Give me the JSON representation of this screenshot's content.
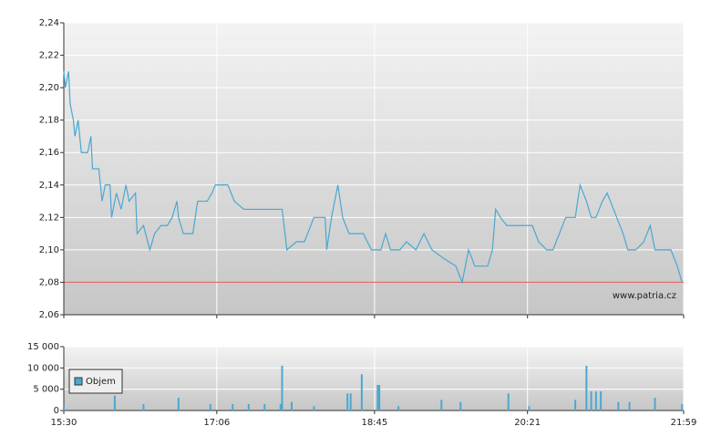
{
  "chart_data": [
    {
      "type": "line",
      "xlim": [
        "15:30",
        "21:59"
      ],
      "xticks": [
        "15:30",
        "17:06",
        "18:45",
        "20:21",
        "21:59"
      ],
      "ylim": [
        2.06,
        2.24
      ],
      "yticks": [
        {
          "value": 2.06,
          "label": "2,06"
        },
        {
          "value": 2.08,
          "label": "2,08"
        },
        {
          "value": 2.1,
          "label": "2,10"
        },
        {
          "value": 2.12,
          "label": "2,12"
        },
        {
          "value": 2.14,
          "label": "2,14"
        },
        {
          "value": 2.16,
          "label": "2,16"
        },
        {
          "value": 2.18,
          "label": "2,18"
        },
        {
          "value": 2.2,
          "label": "2,20"
        },
        {
          "value": 2.22,
          "label": "2,22"
        },
        {
          "value": 2.24,
          "label": "2,24"
        }
      ],
      "grid": true,
      "reference_line": {
        "value": 2.08,
        "color": "#e06a6a"
      },
      "source": "www.patria.cz",
      "series": [
        {
          "color": "#4aa8d0",
          "x": [
            "15:30",
            "15:31",
            "15:33",
            "15:34",
            "15:36",
            "15:37",
            "15:39",
            "15:41",
            "15:45",
            "15:47",
            "15:48",
            "15:52",
            "15:54",
            "15:56",
            "15:59",
            "16:00",
            "16:03",
            "16:06",
            "16:09",
            "16:11",
            "16:15",
            "16:16",
            "16:20",
            "16:24",
            "16:27",
            "16:31",
            "16:35",
            "16:38",
            "16:41",
            "16:42",
            "16:45",
            "16:51",
            "16:54",
            "17:00",
            "17:03",
            "17:05",
            "17:13",
            "17:17",
            "17:23",
            "17:47",
            "17:50",
            "17:56",
            "18:01",
            "18:07",
            "18:14",
            "18:15",
            "18:18",
            "18:22",
            "18:25",
            "18:29",
            "18:38",
            "18:43",
            "18:49",
            "18:52",
            "18:55",
            "19:01",
            "19:05",
            "19:11",
            "19:16",
            "19:21",
            "19:28",
            "19:36",
            "19:40",
            "19:44",
            "19:48",
            "19:56",
            "19:59",
            "20:01",
            "20:04",
            "20:08",
            "20:24",
            "20:28",
            "20:33",
            "20:37",
            "20:41",
            "20:45",
            "20:51",
            "20:54",
            "20:58",
            "21:01",
            "21:04",
            "21:08",
            "21:11",
            "21:15",
            "21:21",
            "21:24",
            "21:29",
            "21:34",
            "21:38",
            "21:41",
            "21:51",
            "21:53",
            "21:55",
            "21:58"
          ],
          "values": [
            2.21,
            2.2,
            2.21,
            2.19,
            2.18,
            2.17,
            2.18,
            2.16,
            2.16,
            2.17,
            2.15,
            2.15,
            2.13,
            2.14,
            2.14,
            2.12,
            2.135,
            2.125,
            2.14,
            2.13,
            2.135,
            2.11,
            2.115,
            2.1,
            2.11,
            2.115,
            2.115,
            2.12,
            2.13,
            2.12,
            2.11,
            2.11,
            2.13,
            2.13,
            2.135,
            2.14,
            2.14,
            2.13,
            2.125,
            2.125,
            2.1,
            2.105,
            2.105,
            2.12,
            2.12,
            2.1,
            2.12,
            2.14,
            2.12,
            2.11,
            2.11,
            2.1,
            2.1,
            2.11,
            2.1,
            2.1,
            2.105,
            2.1,
            2.11,
            2.1,
            2.095,
            2.09,
            2.08,
            2.1,
            2.09,
            2.09,
            2.1,
            2.125,
            2.12,
            2.115,
            2.115,
            2.105,
            2.1,
            2.1,
            2.11,
            2.12,
            2.12,
            2.14,
            2.13,
            2.12,
            2.12,
            2.13,
            2.135,
            2.125,
            2.11,
            2.1,
            2.1,
            2.105,
            2.115,
            2.1,
            2.1,
            2.095,
            2.09,
            2.08
          ]
        }
      ]
    },
    {
      "type": "bar",
      "xlim": [
        "15:30",
        "21:59"
      ],
      "xticks": [
        "15:30",
        "17:06",
        "18:45",
        "20:21",
        "21:59"
      ],
      "ylim": [
        0,
        15000
      ],
      "yticks": [
        0,
        {
          "value": 5000,
          "label": "5 000"
        },
        {
          "value": 10000,
          "label": "10 000"
        },
        {
          "value": 15000,
          "label": "15 000"
        }
      ],
      "grid": true,
      "legend": "top-left",
      "series": [
        {
          "name": "Objem",
          "color": "#4aa8d0",
          "x": [
            "15:30",
            "16:02",
            "16:20",
            "16:42",
            "17:02",
            "17:16",
            "17:26",
            "17:36",
            "17:46",
            "17:47",
            "17:53",
            "18:07",
            "18:28",
            "18:30",
            "18:37",
            "18:47",
            "18:48",
            "19:00",
            "19:27",
            "19:39",
            "20:09",
            "20:22",
            "20:51",
            "20:58",
            "21:01",
            "21:04",
            "21:07",
            "21:18",
            "21:25",
            "21:41",
            "21:58"
          ],
          "values": [
            1000,
            3500,
            1500,
            3000,
            1500,
            1500,
            1500,
            1500,
            1500,
            10500,
            2000,
            1000,
            4000,
            4000,
            8500,
            6000,
            6000,
            1000,
            2500,
            2000,
            4000,
            1000,
            2500,
            10500,
            4500,
            4500,
            4500,
            2000,
            2000,
            3000,
            1500
          ]
        }
      ]
    }
  ]
}
